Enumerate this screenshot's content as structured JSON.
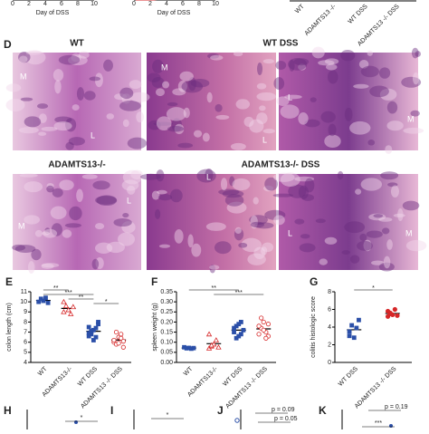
{
  "top": {
    "x_label_a": "Day of DSS",
    "x_label_b": "Day of DSS",
    "xticks_a": [
      0,
      2,
      4,
      6,
      8,
      10
    ],
    "xticks_b": [
      0,
      2,
      4,
      6,
      8,
      10
    ],
    "categories": [
      "WT",
      "ADAMTS13 -/-",
      "WT DSS",
      "ADAMTS13 -/- DSS"
    ]
  },
  "histology": {
    "label": "D",
    "titles": [
      "WT",
      "WT DSS",
      "ADAMTS13-/-",
      "ADAMTS13-/- DSS"
    ],
    "tags": [
      "M",
      "L",
      "M",
      "L",
      "L",
      "M",
      "M",
      "L",
      "L",
      "L",
      "M"
    ]
  },
  "chart_data": [
    {
      "type": "scatter",
      "label": "E",
      "ylabel": "colon length (cm)",
      "categories": [
        "WT",
        "ADAMTS13-/-",
        "WT DSS",
        "ADAMTS13 -/- DSS"
      ],
      "colors": [
        "#2b4fa8",
        "#d62728",
        "#2b4fa8",
        "#d62728"
      ],
      "markers": [
        "square",
        "triangle",
        "square",
        "circle"
      ],
      "values": [
        [
          10.0,
          10.3,
          10.1,
          10.4,
          9.9
        ],
        [
          9.0,
          9.6,
          9.2,
          8.8,
          9.5,
          10.0
        ],
        [
          7.5,
          6.8,
          7.2,
          6.5,
          7.8,
          6.9,
          7.0,
          6.2,
          7.4,
          8.0,
          6.6,
          7.1
        ],
        [
          6.0,
          5.8,
          6.5,
          6.8,
          5.5,
          6.2,
          7.0,
          5.9,
          6.4,
          6.1
        ]
      ],
      "ylim": [
        4,
        11
      ],
      "yticks": [
        4,
        5,
        6,
        7,
        8,
        9,
        10,
        11
      ],
      "annotations": [
        "**",
        "***",
        "**",
        "*"
      ]
    },
    {
      "type": "scatter",
      "label": "F",
      "ylabel": "spleen weight (g)",
      "categories": [
        "WT",
        "ADAMTS13-/-",
        "WT DSS",
        "ADAMTS13 -/- DSS"
      ],
      "colors": [
        "#2b4fa8",
        "#d62728",
        "#2b4fa8",
        "#d62728"
      ],
      "markers": [
        "square",
        "triangle",
        "square",
        "circle"
      ],
      "values": [
        [
          0.075,
          0.07,
          0.072,
          0.068,
          0.071
        ],
        [
          0.07,
          0.08,
          0.09,
          0.11,
          0.075,
          0.14,
          0.085
        ],
        [
          0.15,
          0.18,
          0.13,
          0.2,
          0.16,
          0.17,
          0.12,
          0.19,
          0.14
        ],
        [
          0.14,
          0.17,
          0.2,
          0.15,
          0.13,
          0.18,
          0.22,
          0.16,
          0.12,
          0.19
        ]
      ],
      "ylim": [
        0,
        0.35
      ],
      "yticks": [
        {
          "value": 0,
          "label": "0.00"
        },
        {
          "value": 0.05,
          "label": "0.05"
        },
        {
          "value": 0.1,
          "label": "0.10"
        },
        {
          "value": 0.15,
          "label": "0.15"
        },
        {
          "value": 0.2,
          "label": "0.20"
        },
        {
          "value": 0.25,
          "label": "0.25"
        },
        {
          "value": 0.3,
          "label": "0.30"
        },
        {
          "value": 0.35,
          "label": "0.35"
        }
      ],
      "annotations": [
        "**",
        "***"
      ]
    },
    {
      "type": "scatter",
      "label": "G",
      "ylabel": "colitis histologic score",
      "categories": [
        "WT DSS",
        "ADAMTS13 -/- DSS"
      ],
      "colors": [
        "#2b4fa8",
        "#d62728"
      ],
      "markers": [
        "square",
        "circle"
      ],
      "values": [
        [
          3.5,
          4.2,
          2.8,
          3.9,
          4.8,
          3.0
        ],
        [
          5.2,
          5.6,
          5.4,
          6.0,
          5.3,
          5.8,
          5.5
        ]
      ],
      "ylim": [
        0,
        8
      ],
      "yticks": [
        0,
        2,
        4,
        6,
        8
      ],
      "annotations": [
        "*"
      ]
    }
  ],
  "bottom": {
    "labels": [
      "H",
      "I",
      "J",
      "K"
    ],
    "annotations": [
      "*",
      "*",
      "p = 0.09",
      "p = 0.05",
      "p = 0.19",
      "***"
    ]
  }
}
